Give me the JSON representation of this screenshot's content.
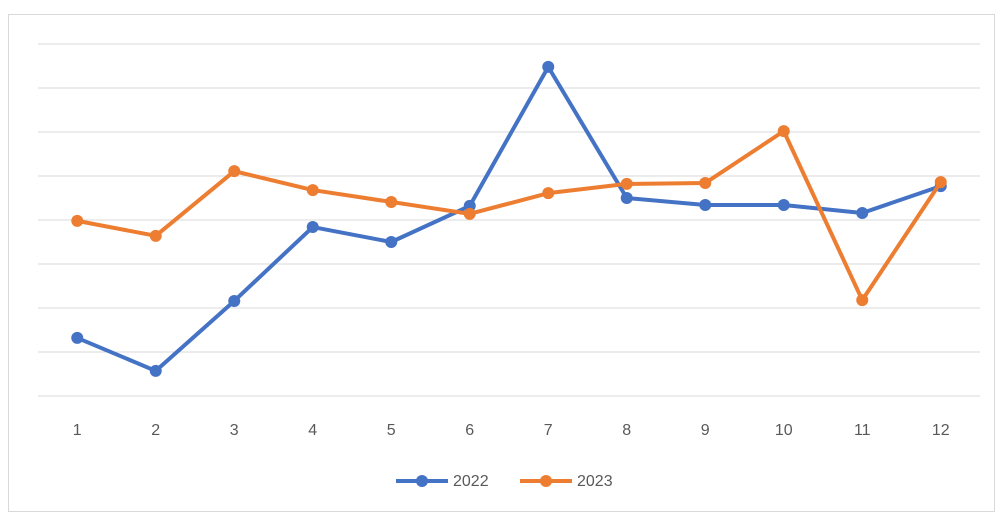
{
  "chart_data": {
    "type": "line",
    "categories": [
      "1",
      "2",
      "3",
      "4",
      "5",
      "6",
      "7",
      "8",
      "9",
      "10",
      "11",
      "12"
    ],
    "series": [
      {
        "name": "2022",
        "color": "#4472c4",
        "values": [
          1.32,
          0.57,
          2.16,
          3.84,
          3.5,
          4.32,
          7.48,
          4.5,
          4.34,
          4.34,
          4.16,
          4.77
        ]
      },
      {
        "name": "2023",
        "color": "#ed7d31",
        "values": [
          3.98,
          3.64,
          5.11,
          4.68,
          4.41,
          4.14,
          4.61,
          4.82,
          4.84,
          6.02,
          2.18,
          4.86
        ]
      }
    ],
    "ylim": [
      0,
      8
    ],
    "yticks": [
      0,
      1,
      2,
      3,
      4,
      5,
      6,
      7,
      8
    ],
    "grid": true,
    "legend": "bottom"
  }
}
